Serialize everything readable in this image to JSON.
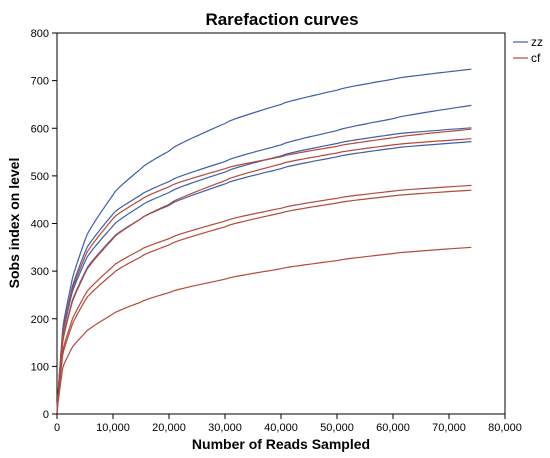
{
  "chart_data": {
    "type": "line",
    "title": "Rarefaction curves",
    "xlabel": "Number of Reads Sampled",
    "ylabel": "Sobs index on level",
    "xlim": [
      0,
      80000
    ],
    "ylim": [
      0,
      800
    ],
    "x_ticks": [
      0,
      10000,
      20000,
      30000,
      40000,
      50000,
      60000,
      70000,
      80000
    ],
    "x_tick_labels": [
      "0",
      "10,000",
      "20,000",
      "30,000",
      "40,000",
      "50,000",
      "60,000",
      "70,000",
      "80,000"
    ],
    "y_ticks": [
      0,
      100,
      200,
      300,
      400,
      500,
      600,
      700,
      800
    ],
    "y_tick_labels": [
      "0",
      "100",
      "200",
      "300",
      "400",
      "500",
      "600",
      "700",
      "800"
    ],
    "grid": false,
    "legend": {
      "placement": "top-right-outside",
      "entries": [
        {
          "label": "zz",
          "color": "#3d5ea8"
        },
        {
          "label": "cf",
          "color": "#b5493a"
        }
      ]
    },
    "x": [
      0,
      1000,
      2500,
      5000,
      10000,
      15000,
      20000,
      30000,
      40000,
      50000,
      60000,
      74000
    ],
    "series": [
      {
        "group": "zz",
        "color": "#3d5ea8",
        "values": [
          0,
          175,
          270,
          365,
          460,
          515,
          552,
          610,
          650,
          680,
          703,
          724
        ]
      },
      {
        "group": "zz",
        "color": "#3d5ea8",
        "values": [
          0,
          165,
          255,
          340,
          420,
          460,
          488,
          530,
          565,
          595,
          620,
          648
        ]
      },
      {
        "group": "zz",
        "color": "#3d5ea8",
        "values": [
          0,
          160,
          245,
          320,
          395,
          437,
          465,
          508,
          542,
          568,
          587,
          601
        ]
      },
      {
        "group": "zz",
        "color": "#3d5ea8",
        "values": [
          0,
          150,
          228,
          298,
          370,
          410,
          438,
          483,
          515,
          540,
          558,
          572
        ]
      },
      {
        "group": "cf",
        "color": "#b5493a",
        "values": [
          0,
          163,
          250,
          330,
          410,
          450,
          477,
          515,
          540,
          562,
          580,
          598
        ]
      },
      {
        "group": "cf",
        "color": "#b5493a",
        "values": [
          0,
          148,
          225,
          295,
          368,
          410,
          440,
          490,
          525,
          548,
          565,
          578
        ]
      },
      {
        "group": "cf",
        "color": "#b5493a",
        "values": [
          0,
          130,
          190,
          250,
          310,
          345,
          368,
          405,
          432,
          453,
          468,
          480
        ]
      },
      {
        "group": "cf",
        "color": "#b5493a",
        "values": [
          0,
          122,
          180,
          238,
          295,
          330,
          355,
          393,
          422,
          443,
          458,
          470
        ]
      },
      {
        "group": "cf",
        "color": "#b5493a",
        "values": [
          0,
          95,
          135,
          170,
          210,
          235,
          255,
          283,
          305,
          322,
          337,
          350
        ]
      }
    ]
  }
}
